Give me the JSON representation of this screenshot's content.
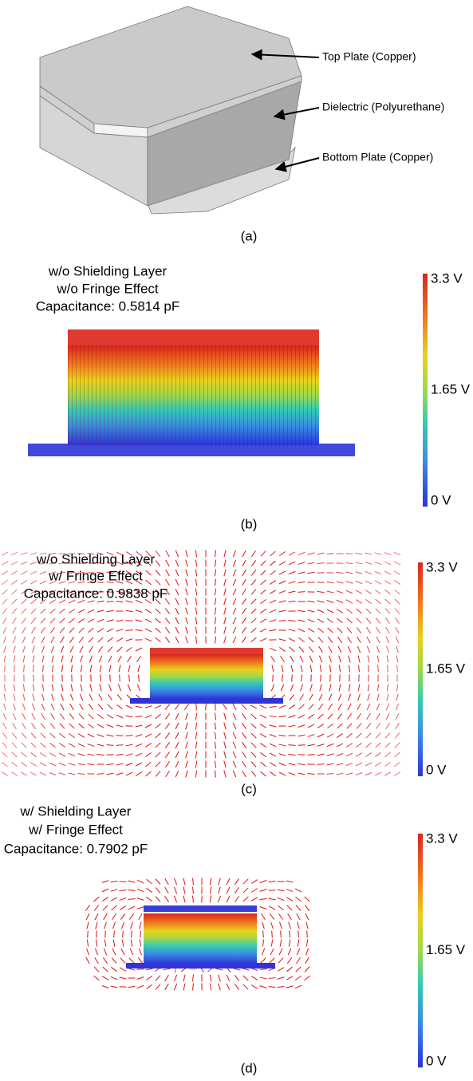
{
  "panels": [
    {
      "label": "(a)",
      "annotations": [
        "Top Plate (Copper)",
        "Dielectric (Polyurethane)",
        "Bottom Plate (Copper)"
      ]
    },
    {
      "label": "(b)",
      "title": [
        "w/o Shielding Layer",
        "w/o Fringe Effect",
        "Capacitance: 0.5814 pF"
      ],
      "colorbar": [
        "3.3 V",
        "1.65 V",
        "0 V"
      ]
    },
    {
      "label": "(c)",
      "title": [
        "w/o Shielding Layer",
        "w/ Fringe Effect",
        "Capacitance: 0.9838 pF"
      ],
      "colorbar": [
        "3.3 V",
        "1.65 V",
        "0 V"
      ]
    },
    {
      "label": "(d)",
      "title": [
        "w/ Shielding Layer",
        "w/ Fringe Effect",
        "Capacitance: 0.7902 pF"
      ],
      "colorbar": [
        "3.3 V",
        "1.65 V",
        "0 V"
      ]
    }
  ]
}
